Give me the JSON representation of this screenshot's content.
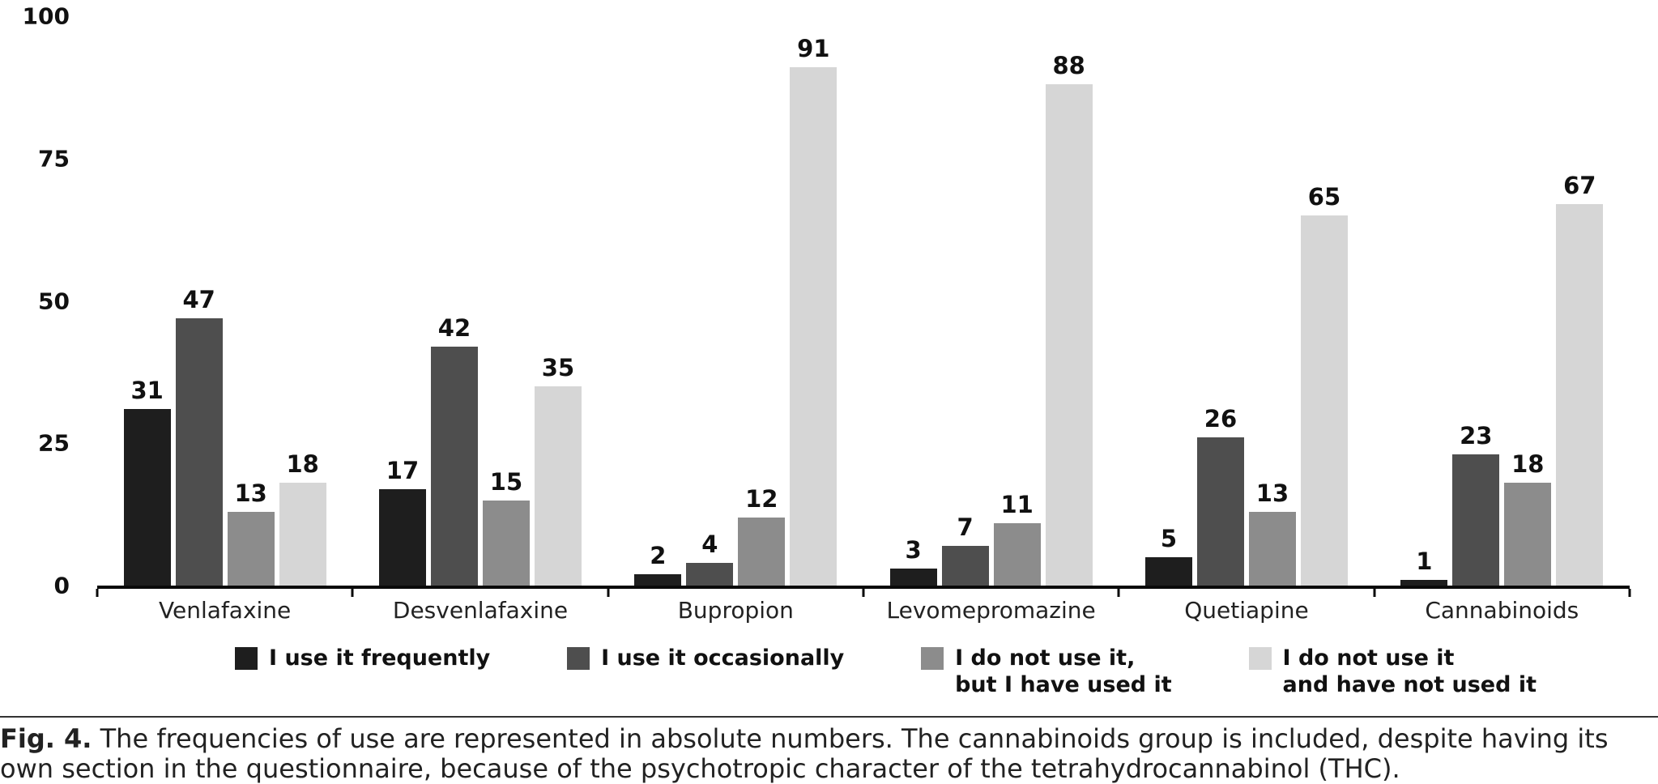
{
  "chart_data": {
    "type": "bar",
    "title": "",
    "xlabel": "",
    "ylabel": "",
    "ylim": [
      0,
      100
    ],
    "yticks": [
      0,
      25,
      50,
      75,
      100
    ],
    "grid": false,
    "legend_position": "bottom",
    "value_labels": true,
    "categories": [
      "Venlafaxine",
      "Desvenlafaxine",
      "Bupropion",
      "Levomepromazine",
      "Quetiapine",
      "Cannabinoids"
    ],
    "series": [
      {
        "name": "I use it frequently",
        "name_lines": [
          "I use it frequently"
        ],
        "color": "#1e1e1e",
        "values": [
          31,
          17,
          2,
          3,
          5,
          1
        ]
      },
      {
        "name": "I use it occasionally",
        "name_lines": [
          "I use it occasionally"
        ],
        "color": "#4e4e4e",
        "values": [
          47,
          42,
          4,
          7,
          26,
          23
        ]
      },
      {
        "name": "I do not use it, but I have used it",
        "name_lines": [
          "I do not use it,",
          "but I have used it"
        ],
        "color": "#8c8c8c",
        "values": [
          13,
          15,
          12,
          11,
          13,
          18
        ]
      },
      {
        "name": "I do not use it and have not used it",
        "name_lines": [
          "I do not use it",
          "and have not used it"
        ],
        "color": "#d6d6d6",
        "values": [
          18,
          35,
          91,
          88,
          65,
          67
        ]
      }
    ]
  },
  "caption": {
    "prefix": "Fig. 4.",
    "text": "The frequencies of use are represented in absolute numbers. The cannabinoids group is included, despite having its own section in the questionnaire, because of the psychotropic character of the tetrahydrocannabinol (THC)."
  }
}
